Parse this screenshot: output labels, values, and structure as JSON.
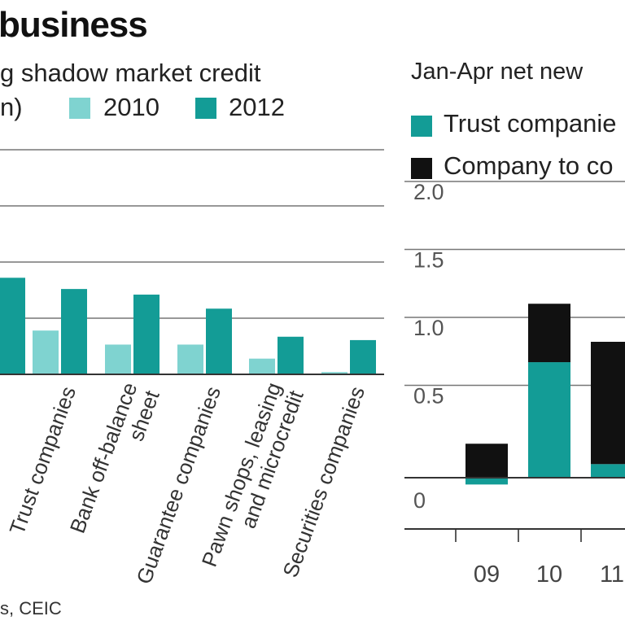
{
  "header": {
    "title": "business",
    "left_subtitle": "g shadow market credit",
    "left_unit": "n)",
    "right_subtitle": "Jan-Apr net new",
    "source": "s, CEIC"
  },
  "colors": {
    "light_teal": "#7fd3d0",
    "dark_teal": "#139c96",
    "black": "#111111",
    "grid": "#777777"
  },
  "chart_data": [
    {
      "type": "bar",
      "title": "",
      "legend": [
        {
          "name": "2010",
          "color": "#7fd3d0"
        },
        {
          "name": "2012",
          "color": "#139c96"
        }
      ],
      "categories": [
        "",
        "Trust companies",
        "Bank off-balance sheet",
        "Guarantee companies",
        "Pawn shops, leasing and microcredit",
        "Securities companies"
      ],
      "category_lines": [
        [
          ""
        ],
        [
          "Trust companies"
        ],
        [
          "Bank off-balance",
          "sheet"
        ],
        [
          "Guarantee companies"
        ],
        [
          "Pawn shops, leasing",
          "and microcredit"
        ],
        [
          "Securities companies"
        ]
      ],
      "series": [
        {
          "name": "2010",
          "values": [
            null,
            0.78,
            0.53,
            0.53,
            0.28,
            0.04
          ]
        },
        {
          "name": "2012",
          "values": [
            1.72,
            1.52,
            1.42,
            1.17,
            0.67,
            0.61
          ]
        }
      ],
      "ylim": [
        0,
        4
      ],
      "grid": true
    },
    {
      "type": "bar",
      "stacked": true,
      "title": "",
      "legend": [
        {
          "name": "Trust companie",
          "color": "#139c96"
        },
        {
          "name": "Company to co",
          "color": "#111111"
        }
      ],
      "categories": [
        "09",
        "10",
        "11",
        ""
      ],
      "series": [
        {
          "name": "Trust companie",
          "values": [
            -0.05,
            0.85,
            0.1,
            null
          ]
        },
        {
          "name": "Company to co",
          "values": [
            0.25,
            0.43,
            0.9,
            null
          ]
        }
      ],
      "yticks": [
        "2.0",
        "1.5",
        "1.0",
        "0.5",
        "0"
      ],
      "ylim": [
        -0.5,
        2.0
      ],
      "grid": true
    }
  ]
}
